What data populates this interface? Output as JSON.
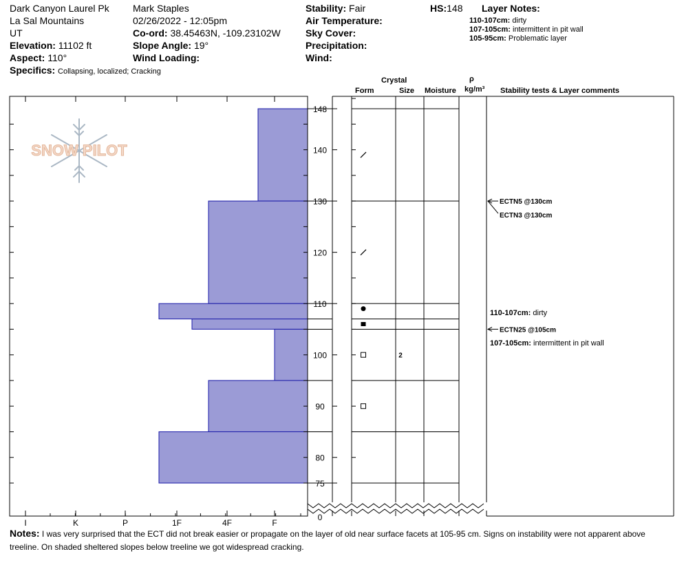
{
  "header": {
    "location": "Dark Canyon Laurel Pk",
    "range": "La Sal Mountains",
    "state": "UT",
    "elevation_label": "Elevation:",
    "elevation_value": "11102 ft",
    "aspect_label": "Aspect:",
    "aspect_value": "110°",
    "specifics_label": "Specifics:",
    "specifics_value": "Collapsing, localized; Cracking",
    "observer": "Mark Staples",
    "datetime": "02/26/2022 - 12:05pm",
    "coord_label": "Co-ord:",
    "coord_value": "38.45463N, -109.23102W",
    "slope_label": "Slope Angle:",
    "slope_value": "19°",
    "wind_loading_label": "Wind Loading:",
    "stability_label": "Stability:",
    "stability_value": "Fair",
    "air_temp_label": "Air Temperature:",
    "sky_cover_label": "Sky Cover:",
    "precip_label": "Precipitation:",
    "wind_label": "Wind:",
    "hs_label": "HS:",
    "hs_value": "148",
    "layer_notes_title": "Layer Notes:",
    "layer_notes": [
      {
        "range": "110-107cm:",
        "text": "dirty"
      },
      {
        "range": "107-105cm:",
        "text": "intermittent in pit wall"
      },
      {
        "range": "105-95cm:",
        "text": "Problematic layer"
      }
    ]
  },
  "logo_text": "SNOW PILOT",
  "columns": {
    "crystal": "Crystal",
    "form": "Form",
    "size": "Size",
    "moisture": "Moisture",
    "rho": "ρ",
    "density_unit": "kg/m³",
    "comments": "Stability tests & Layer comments"
  },
  "chart_data": {
    "type": "bar",
    "orientation": "horizontal",
    "x_axis_ticks": [
      "I",
      "K",
      "P",
      "1F",
      "4F",
      "F"
    ],
    "y_axis_ticks": [
      148,
      140,
      130,
      120,
      110,
      100,
      90,
      80,
      75,
      0
    ],
    "y_unit": "cm",
    "hardness_layers": [
      {
        "top": 148,
        "bottom": 130,
        "hardness": "F"
      },
      {
        "top": 130,
        "bottom": 110,
        "hardness": "4F"
      },
      {
        "top": 110,
        "bottom": 107,
        "hardness": "1F+"
      },
      {
        "top": 107,
        "bottom": 105,
        "hardness": "1F-4F"
      },
      {
        "top": 105,
        "bottom": 95,
        "hardness": "F-"
      },
      {
        "top": 95,
        "bottom": 85,
        "hardness": "4F"
      },
      {
        "top": 85,
        "bottom": 75,
        "hardness": "1F+"
      }
    ],
    "layer_boundaries": [
      148,
      130,
      110,
      107,
      105,
      95,
      85,
      75
    ],
    "crystal_forms": [
      {
        "depth": 139,
        "form": "decomposing"
      },
      {
        "depth": 120,
        "form": "decomposing"
      },
      {
        "depth": 109,
        "form": "rounded"
      },
      {
        "depth": 106,
        "form": "rounding faceted"
      },
      {
        "depth": 100,
        "form": "faceted",
        "size": "2"
      },
      {
        "depth": 90,
        "form": "faceted"
      }
    ],
    "stability_tests": [
      {
        "depth": 130,
        "label": "ECTN5 @130cm"
      },
      {
        "depth": 130,
        "label": "ECTN3 @130cm"
      },
      {
        "depth": 105,
        "label": "ECTN25 @105cm"
      }
    ],
    "layer_comments": [
      {
        "range": "110-107cm:",
        "text": "dirty"
      },
      {
        "range": "107-105cm:",
        "text": "intermittent in pit wall"
      }
    ]
  },
  "notes": {
    "label": "Notes:",
    "text": "I was very surprised that the ECT did not break easier or propagate on the layer of old near surface facets at 105-95 cm. Signs on instability were not apparent above treeline. On shaded sheltered slopes below treeline we got widespread cracking."
  }
}
